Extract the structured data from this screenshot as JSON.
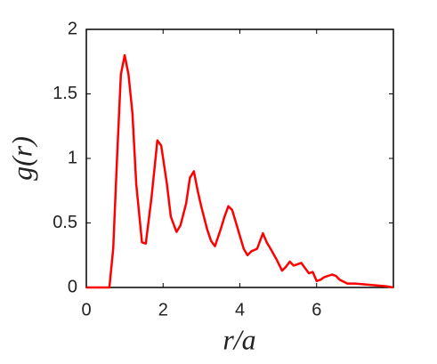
{
  "chart_data": {
    "type": "line",
    "xlabel": "r/a",
    "ylabel": "g(r)",
    "xlim": [
      0,
      8
    ],
    "ylim": [
      0,
      2
    ],
    "xticks": [
      0,
      2,
      4,
      6
    ],
    "yticks": [
      0,
      {
        "value": 0.5,
        "label": "0.5"
      },
      1,
      {
        "value": 1.5,
        "label": "1.5"
      },
      2
    ],
    "series": [
      {
        "color": "#ff0000",
        "x": [
          0,
          0.3,
          0.6,
          0.7,
          0.8,
          0.9,
          1.0,
          1.1,
          1.2,
          1.3,
          1.45,
          1.55,
          1.7,
          1.85,
          1.95,
          2.1,
          2.2,
          2.35,
          2.45,
          2.6,
          2.7,
          2.8,
          2.9,
          3.0,
          3.15,
          3.25,
          3.35,
          3.5,
          3.6,
          3.7,
          3.8,
          3.9,
          4.0,
          4.1,
          4.2,
          4.3,
          4.45,
          4.6,
          4.7,
          4.8,
          4.95,
          5.1,
          5.2,
          5.3,
          5.4,
          5.6,
          5.7,
          5.8,
          5.9,
          6.0,
          6.1,
          6.2,
          6.4,
          6.5,
          6.6,
          6.8,
          7.0,
          7.4,
          7.8,
          8.0
        ],
        "values": [
          0,
          0,
          0,
          0.3,
          1.0,
          1.65,
          1.8,
          1.65,
          1.35,
          0.8,
          0.35,
          0.34,
          0.7,
          1.14,
          1.1,
          0.8,
          0.55,
          0.43,
          0.48,
          0.65,
          0.85,
          0.9,
          0.75,
          0.62,
          0.45,
          0.36,
          0.32,
          0.45,
          0.55,
          0.63,
          0.6,
          0.5,
          0.4,
          0.3,
          0.25,
          0.28,
          0.3,
          0.42,
          0.35,
          0.3,
          0.22,
          0.13,
          0.16,
          0.2,
          0.17,
          0.19,
          0.15,
          0.11,
          0.12,
          0.05,
          0.06,
          0.08,
          0.1,
          0.09,
          0.06,
          0.03,
          0.03,
          0.02,
          0.01,
          0
        ]
      }
    ]
  }
}
